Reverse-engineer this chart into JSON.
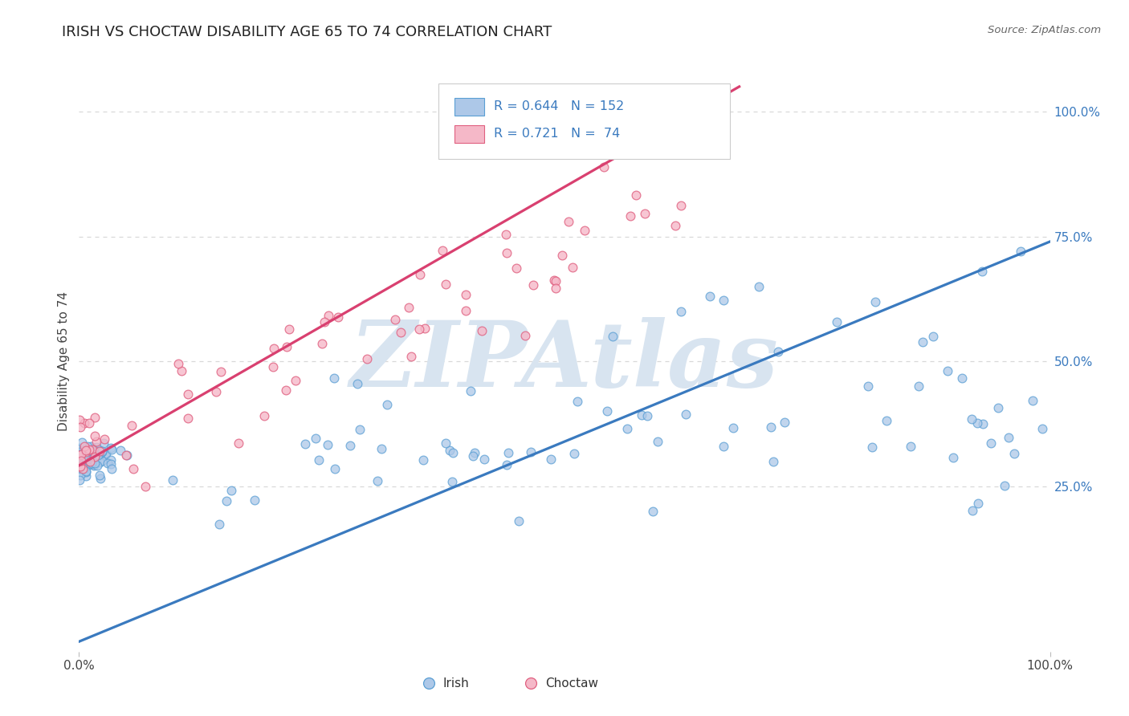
{
  "title": "IRISH VS CHOCTAW DISABILITY AGE 65 TO 74 CORRELATION CHART",
  "source_text": "Source: ZipAtlas.com",
  "ylabel": "Disability Age 65 to 74",
  "irish_R": 0.644,
  "irish_N": 152,
  "choctaw_R": 0.721,
  "choctaw_N": 74,
  "irish_color": "#adc8e8",
  "choctaw_color": "#f5b8c8",
  "irish_line_color": "#3a7abf",
  "choctaw_line_color": "#d94070",
  "irish_marker_edge": "#5a9fd4",
  "choctaw_marker_edge": "#e06080",
  "watermark_color": "#d8e4f0",
  "background_color": "#ffffff",
  "grid_color": "#d8d8d8",
  "xlim": [
    0.0,
    1.0
  ],
  "ylim": [
    -0.08,
    1.08
  ],
  "x_tick_labels": [
    "0.0%",
    "100.0%"
  ],
  "y_tick_labels": [
    "25.0%",
    "50.0%",
    "75.0%",
    "100.0%"
  ],
  "y_tick_positions": [
    0.25,
    0.5,
    0.75,
    1.0
  ],
  "title_color": "#222222",
  "title_fontsize": 13,
  "axis_label_color": "#444444",
  "tick_label_color": "#444444",
  "legend_label_color": "#333333",
  "irish_line_x0": 0.0,
  "irish_line_y0": -0.06,
  "irish_line_x1": 1.0,
  "irish_line_y1": 0.74,
  "choctaw_line_x0": -0.02,
  "choctaw_line_y0": 0.27,
  "choctaw_line_x1": 0.68,
  "choctaw_line_y1": 1.05
}
